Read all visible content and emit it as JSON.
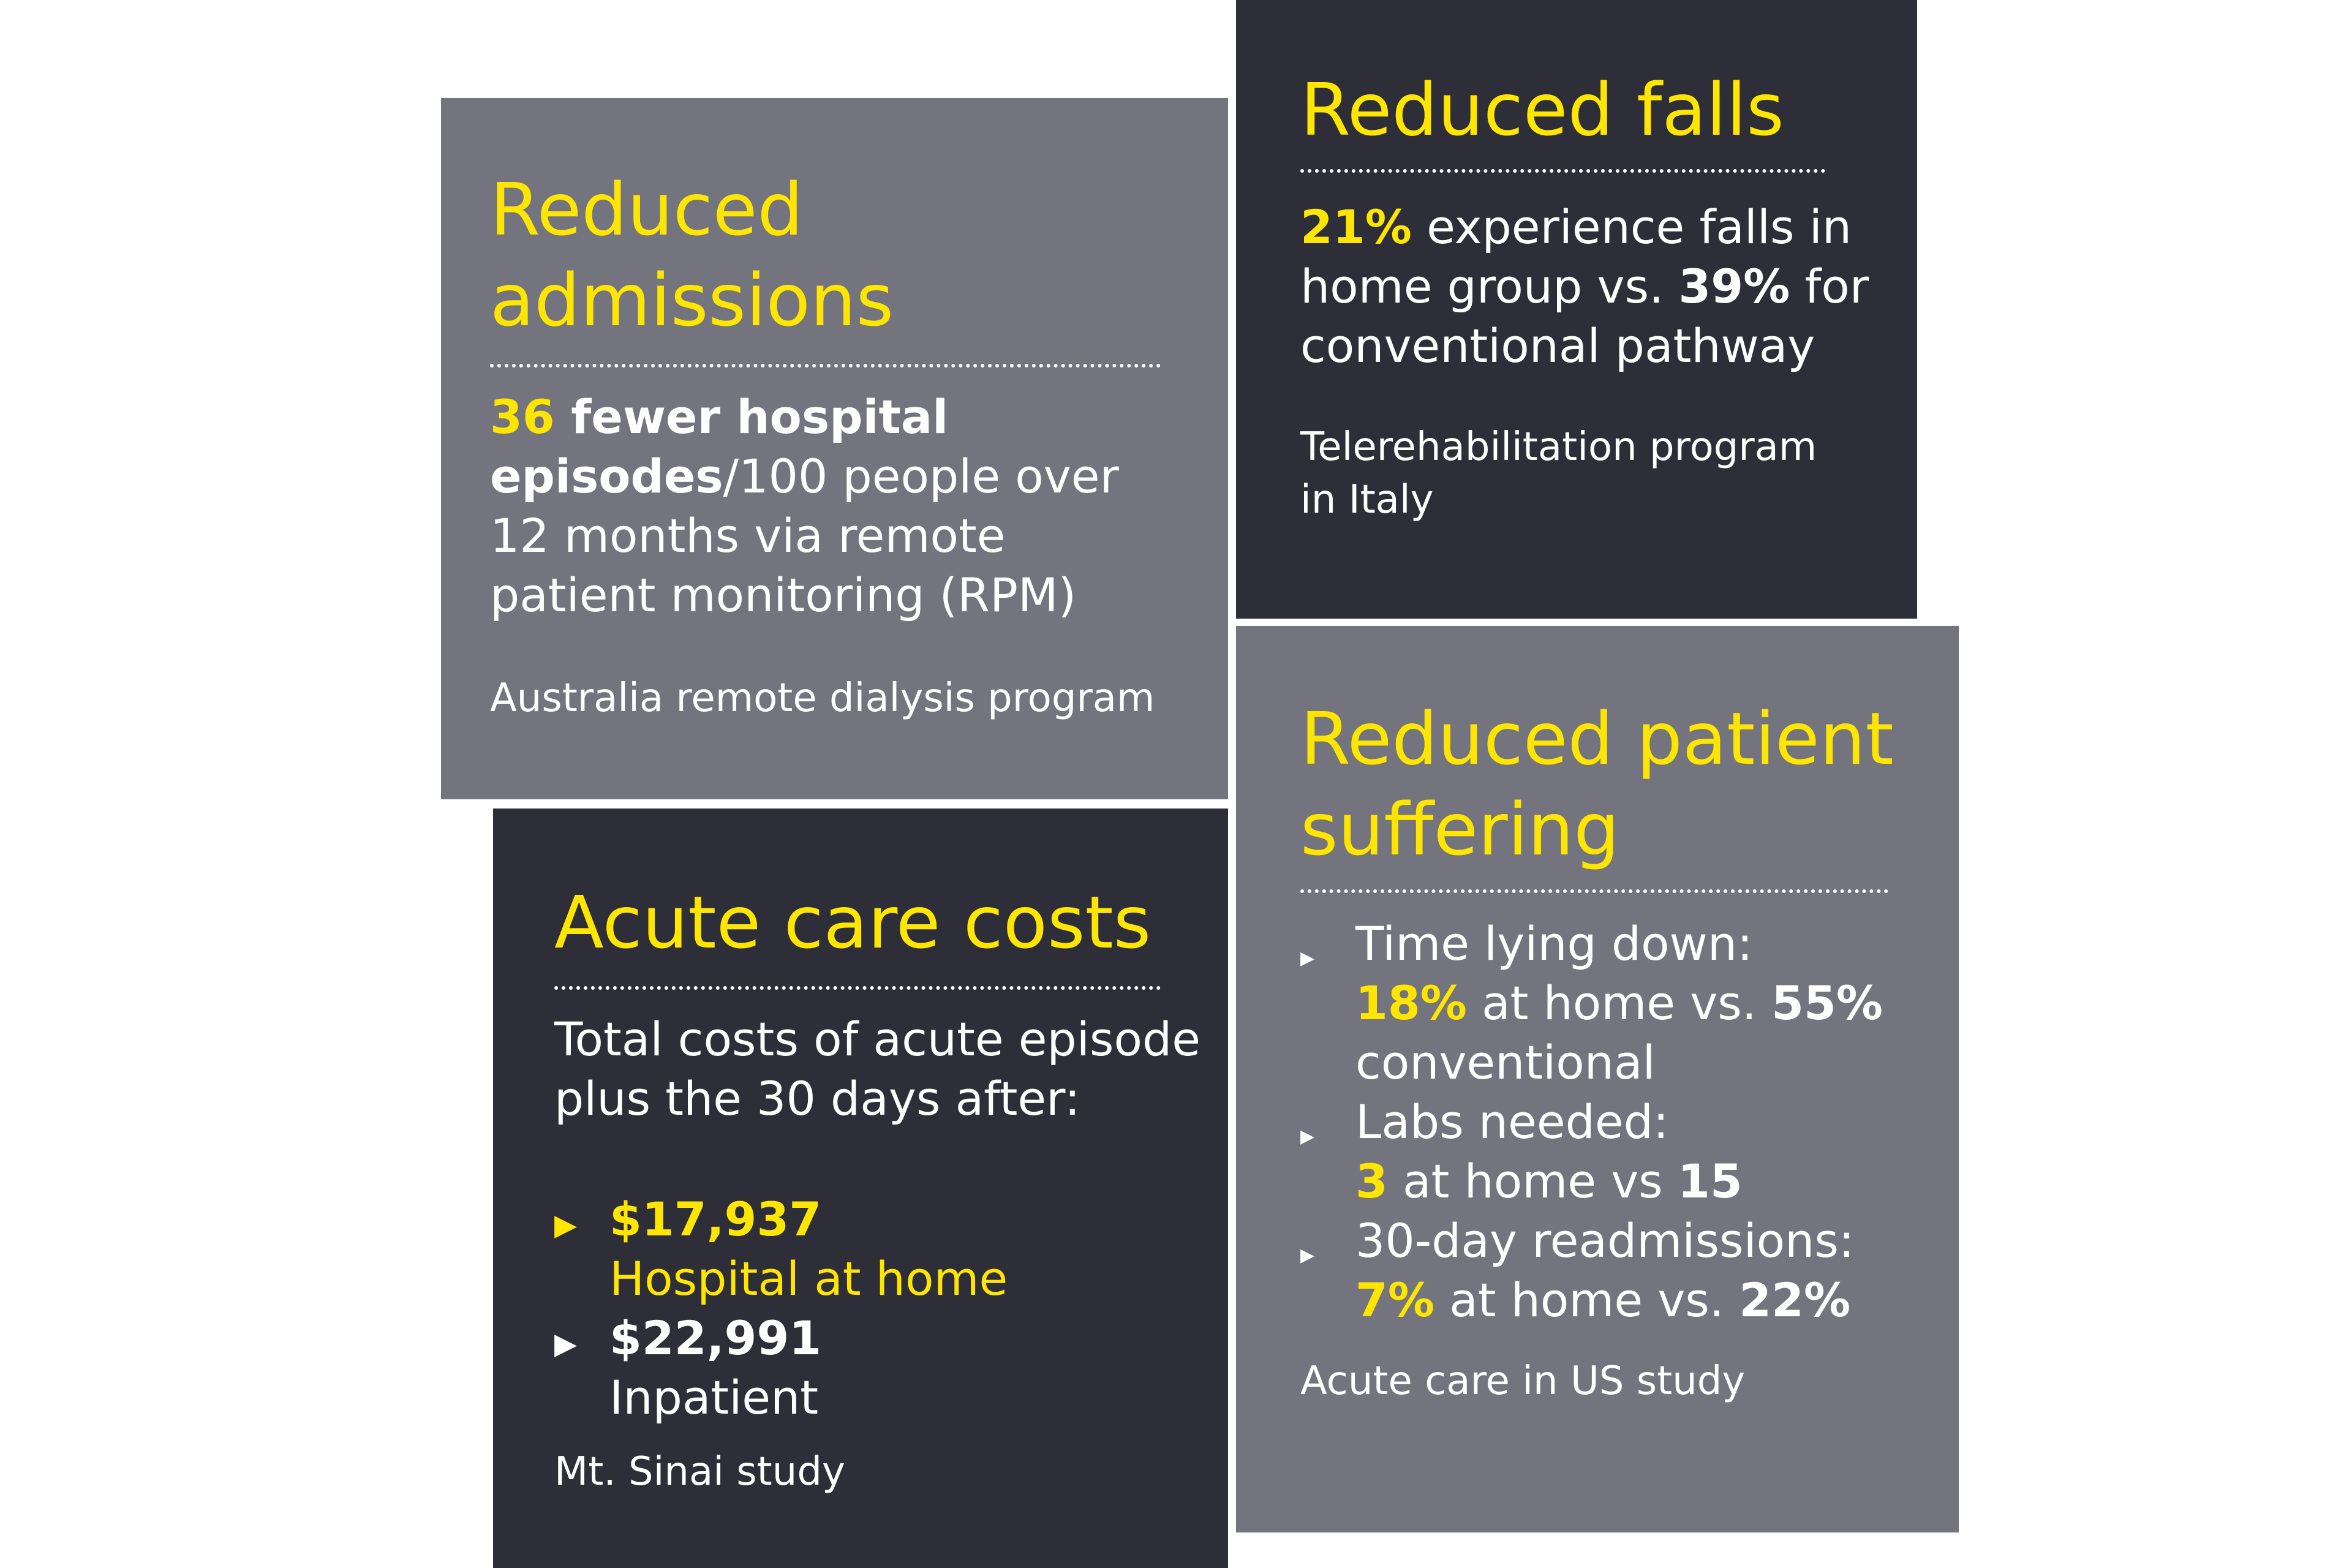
{
  "colors": {
    "accent": "#ffe600",
    "grey_card": "#74747f",
    "dark_card": "#2e2e38",
    "text": "#ffffff"
  },
  "cards": {
    "admissions": {
      "title_line1": "Reduced",
      "title_line2": "admissions",
      "stat_number": "36",
      "stat_bold_1": " fewer hospital",
      "stat_bold_2": "episodes",
      "stat_rest_2": "/100 people over",
      "line3": "12 months via remote",
      "line4": "patient monitoring (RPM)",
      "source": "Australia remote dialysis program"
    },
    "falls": {
      "title": "Reduced falls",
      "stat_home": "21%",
      "line1_rest": " experience falls in",
      "line2_pre": "home group vs. ",
      "stat_conventional": "39%",
      "line2_post": " for",
      "line3": "conventional pathway",
      "source_line1": "Telerehabilitation program",
      "source_line2": "in Italy"
    },
    "costs": {
      "title": "Acute care costs",
      "intro_line1": "Total costs of acute episode",
      "intro_line2": "plus the 30 days after:",
      "bullet_icon": "triangle-right-icon",
      "items": [
        {
          "amount": "$17,937",
          "label": "Hospital at home"
        },
        {
          "amount": "$22,991",
          "label": "Inpatient"
        }
      ],
      "source": "Mt. Sinai study"
    },
    "suffering": {
      "title_line1": "Reduced patient",
      "title_line2": "suffering",
      "bullet_icon": "triangle-right-icon",
      "items": [
        {
          "label": "Time lying down:",
          "home": "18%",
          "mid": " at home vs. ",
          "conv": "55%",
          "tail": "conventional"
        },
        {
          "label": "Labs needed:",
          "home": "3",
          "mid": " at home vs ",
          "conv": "15",
          "tail": ""
        },
        {
          "label": "30-day readmissions:",
          "home": "7%",
          "mid": " at home vs. ",
          "conv": "22%",
          "tail": ""
        }
      ],
      "source": "Acute care in US study"
    }
  }
}
